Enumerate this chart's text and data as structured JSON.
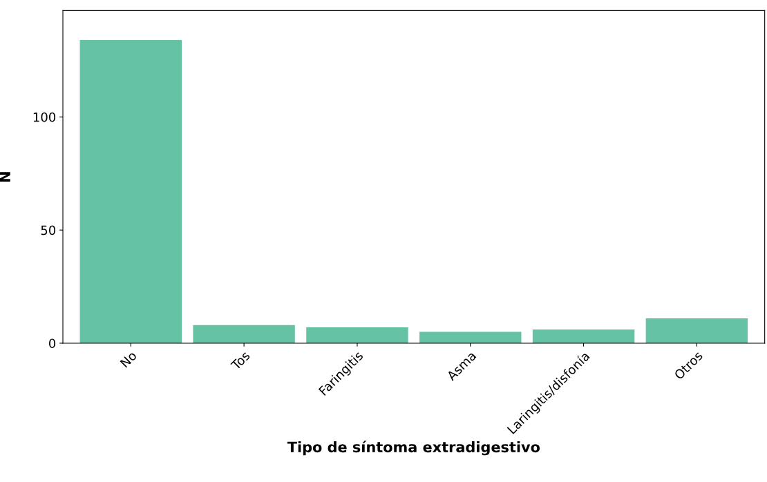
{
  "chart_data": {
    "type": "bar",
    "categories": [
      "No",
      "Tos",
      "Faringitis",
      "Asma",
      "Laringitis/disfonía",
      "Otros"
    ],
    "values": [
      134,
      8,
      7,
      5,
      6,
      11
    ],
    "color": "#66c2a5",
    "xlabel": "Tipo de síntoma extradigestivo",
    "ylabel": "N",
    "ylim": [
      0,
      147
    ],
    "yticks": [
      0,
      50,
      100
    ],
    "grid": false
  }
}
